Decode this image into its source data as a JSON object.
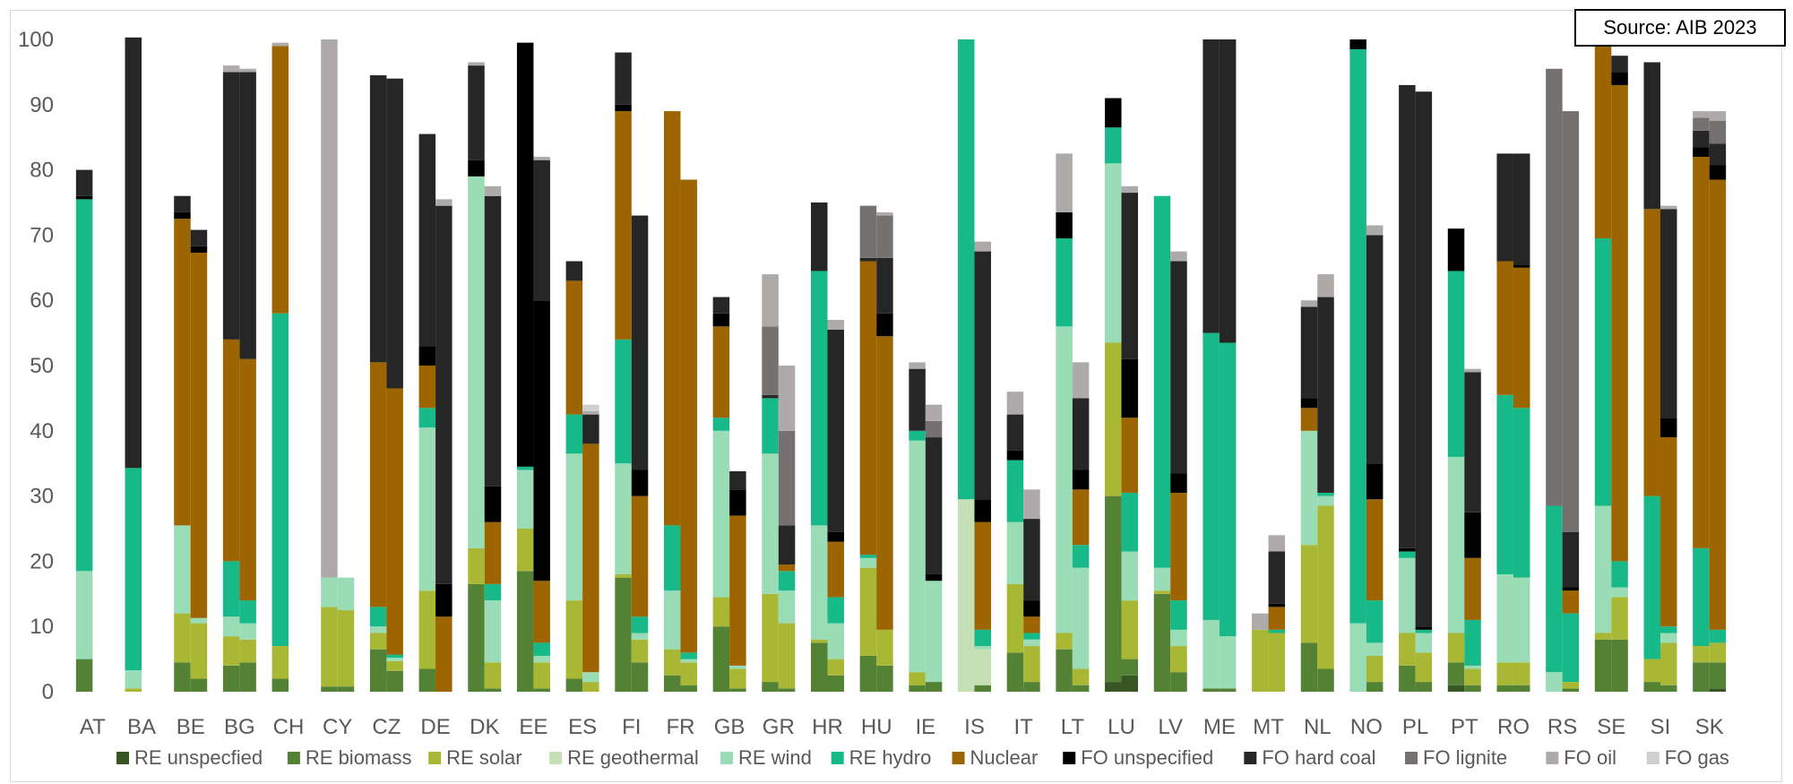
{
  "source_label": "Source: AIB 2023",
  "chart_data": {
    "type": "bar",
    "stacked": true,
    "bars_per_category": 2,
    "ylim": [
      0,
      100
    ],
    "yticks": [
      0,
      10,
      20,
      30,
      40,
      50,
      60,
      70,
      80,
      90,
      100
    ],
    "grid": false,
    "legend_position": "bottom",
    "categories": [
      "AT",
      "BA",
      "BE",
      "BG",
      "CH",
      "CY",
      "CZ",
      "DE",
      "DK",
      "EE",
      "ES",
      "FI",
      "FR",
      "GB",
      "GR",
      "HR",
      "HU",
      "IE",
      "IS",
      "IT",
      "LT",
      "LU",
      "LV",
      "ME",
      "MT",
      "NL",
      "NO",
      "PL",
      "PT",
      "RO",
      "RS",
      "SE",
      "SI",
      "SK"
    ],
    "series": [
      {
        "name": "RE unspecfied",
        "color": "#375623"
      },
      {
        "name": "RE biomass",
        "color": "#548235"
      },
      {
        "name": "RE solar",
        "color": "#a9b834"
      },
      {
        "name": "RE geothermal",
        "color": "#c5e0b4"
      },
      {
        "name": "RE wind",
        "color": "#99dcb5"
      },
      {
        "name": "RE hydro",
        "color": "#16b987"
      },
      {
        "name": "Nuclear",
        "color": "#9c6500"
      },
      {
        "name": "FO unspecified",
        "color": "#000000"
      },
      {
        "name": "FO hard coal",
        "color": "#262626"
      },
      {
        "name": "FO lignite",
        "color": "#767171"
      },
      {
        "name": "FO oil",
        "color": "#aeaaaa"
      },
      {
        "name": "FO gas",
        "color": "#d0cece"
      }
    ],
    "bars": [
      {
        "category": "AT",
        "values": [
          0,
          5,
          0,
          0,
          13.5,
          57,
          0,
          0.5,
          4,
          0,
          0,
          0
        ]
      },
      {
        "category": "AT",
        "values": [
          0,
          0,
          0,
          0,
          0,
          0,
          0,
          0,
          0,
          0,
          0,
          0
        ]
      },
      {
        "category": "BA",
        "values": [
          0,
          0,
          0.5,
          0,
          2.8,
          31,
          0,
          0,
          66,
          0,
          0,
          0
        ]
      },
      {
        "category": "BA",
        "values": [
          0,
          0,
          0,
          0,
          0,
          0,
          0,
          0,
          0,
          0,
          0,
          0
        ]
      },
      {
        "category": "BE",
        "values": [
          0,
          4.5,
          7.5,
          0,
          13.5,
          0,
          47,
          1,
          2.5,
          0,
          0,
          0
        ]
      },
      {
        "category": "BE",
        "values": [
          0,
          2,
          8.5,
          0,
          0.8,
          0,
          56,
          1,
          2.5,
          0,
          0,
          0
        ]
      },
      {
        "category": "BG",
        "values": [
          0,
          4,
          4.5,
          0,
          3,
          8.5,
          34,
          0,
          41,
          0,
          1,
          0
        ]
      },
      {
        "category": "BG",
        "values": [
          0,
          4.5,
          3.5,
          0,
          2.5,
          3.5,
          37,
          0,
          44,
          0,
          0.5,
          0
        ]
      },
      {
        "category": "CH",
        "values": [
          0,
          2,
          5,
          0,
          0,
          51,
          41,
          0,
          0,
          0,
          0.5,
          0
        ]
      },
      {
        "category": "CH",
        "values": [
          0,
          0,
          0,
          0,
          0,
          0,
          0,
          0,
          0,
          0,
          0,
          0
        ]
      },
      {
        "category": "CY",
        "values": [
          0,
          0.8,
          12.2,
          0,
          4.5,
          0,
          0,
          0,
          0,
          0,
          82.5,
          0
        ]
      },
      {
        "category": "CY",
        "values": [
          0,
          0.8,
          11.7,
          0,
          5,
          0,
          0,
          0,
          0,
          0,
          0,
          0
        ]
      },
      {
        "category": "CZ",
        "values": [
          0,
          6.5,
          2.5,
          0,
          1,
          3,
          37.5,
          0,
          44,
          0,
          0,
          0
        ]
      },
      {
        "category": "CZ",
        "values": [
          0,
          3.2,
          1.5,
          0,
          0.5,
          0.5,
          40.8,
          0,
          47.5,
          0,
          0,
          0
        ]
      },
      {
        "category": "DE",
        "values": [
          0,
          3.5,
          12,
          0,
          25,
          3,
          6.5,
          3,
          32.5,
          0,
          0,
          0
        ]
      },
      {
        "category": "DE",
        "values": [
          0,
          0,
          0,
          0,
          0,
          0,
          11.5,
          5,
          58,
          0,
          1,
          0
        ]
      },
      {
        "category": "DK",
        "values": [
          0,
          16.5,
          5.5,
          0,
          57,
          0,
          0,
          2.5,
          14.5,
          0,
          0.5,
          0
        ]
      },
      {
        "category": "DK",
        "values": [
          0,
          0.5,
          4,
          0,
          9.5,
          2.5,
          9.5,
          5.5,
          44.5,
          0,
          1.5,
          0
        ]
      },
      {
        "category": "EE",
        "values": [
          0,
          18.5,
          6.5,
          0,
          9,
          0.5,
          0,
          65,
          0,
          0,
          0,
          0
        ]
      },
      {
        "category": "EE",
        "values": [
          0,
          0.5,
          4,
          0,
          1,
          2,
          9.5,
          43,
          21.5,
          0,
          0.5,
          0
        ]
      },
      {
        "category": "ES",
        "values": [
          0,
          2,
          12,
          0,
          22.5,
          6,
          20.5,
          0,
          3,
          0,
          0,
          0
        ]
      },
      {
        "category": "ES",
        "values": [
          0,
          0,
          1.5,
          0,
          1.5,
          0,
          35,
          0,
          4.5,
          0,
          0.5,
          1
        ]
      },
      {
        "category": "FI",
        "values": [
          0,
          17.5,
          0.5,
          0,
          17,
          19,
          35,
          1,
          8,
          0,
          0,
          0
        ]
      },
      {
        "category": "FI",
        "values": [
          0,
          4.5,
          3.5,
          0,
          1,
          2.5,
          18.5,
          4,
          39,
          0,
          0,
          0
        ]
      },
      {
        "category": "FR",
        "values": [
          0,
          2.5,
          4,
          0,
          9,
          10,
          63.5,
          0,
          0,
          0,
          0,
          0
        ]
      },
      {
        "category": "FR",
        "values": [
          0,
          1,
          3.5,
          0,
          0.5,
          1,
          72.5,
          0,
          0,
          0,
          0,
          0
        ]
      },
      {
        "category": "GB",
        "values": [
          0,
          10,
          4.5,
          0,
          25.5,
          2,
          14,
          2,
          2.5,
          0,
          0,
          0
        ]
      },
      {
        "category": "GB",
        "values": [
          0,
          0.5,
          3,
          0,
          0.5,
          0,
          23,
          4,
          2.8,
          0,
          0,
          0
        ]
      },
      {
        "category": "GR",
        "values": [
          0,
          1.5,
          13.5,
          0,
          21.5,
          8.5,
          0,
          0,
          0.5,
          10.5,
          8,
          0
        ]
      },
      {
        "category": "GR",
        "values": [
          0,
          0.5,
          10,
          0,
          5,
          3,
          1,
          0,
          6,
          14.5,
          10,
          0
        ]
      },
      {
        "category": "HR",
        "values": [
          0,
          7.5,
          0.5,
          0,
          17.5,
          39,
          0,
          0,
          10.5,
          0,
          0,
          0
        ]
      },
      {
        "category": "HR",
        "values": [
          0,
          2.5,
          2.5,
          0,
          5.5,
          4,
          8.5,
          1.5,
          31,
          0,
          1.5,
          0
        ]
      },
      {
        "category": "HU",
        "values": [
          0,
          5.5,
          13.5,
          0,
          1.5,
          0.5,
          45,
          0,
          0.5,
          8,
          0,
          0
        ]
      },
      {
        "category": "HU",
        "values": [
          0,
          4,
          5.5,
          0,
          0,
          0,
          45,
          3.5,
          8.5,
          6.5,
          0.5,
          0
        ]
      },
      {
        "category": "IE",
        "values": [
          0,
          1,
          2,
          0,
          35.5,
          1.5,
          0,
          0,
          9.5,
          0,
          1,
          0
        ]
      },
      {
        "category": "IE",
        "values": [
          0,
          1.5,
          0,
          0,
          15.5,
          0,
          0,
          1,
          21,
          2.5,
          2.5,
          0
        ]
      },
      {
        "category": "IS",
        "values": [
          0,
          0,
          0,
          29.5,
          0,
          70.5,
          0,
          0,
          0,
          0,
          0,
          0
        ]
      },
      {
        "category": "IS",
        "values": [
          0,
          1,
          0,
          5.5,
          0.5,
          2.5,
          16.5,
          3.5,
          38,
          0,
          1.5,
          0
        ]
      },
      {
        "category": "IT",
        "values": [
          0,
          6,
          10.5,
          0,
          9.5,
          9.5,
          0,
          1.5,
          5.5,
          0,
          3.5,
          0
        ]
      },
      {
        "category": "IT",
        "values": [
          0,
          1.5,
          5.5,
          0,
          1,
          1,
          2.5,
          2.5,
          12.5,
          0,
          4.5,
          0
        ]
      },
      {
        "category": "LT",
        "values": [
          0,
          6.5,
          2.5,
          0,
          47,
          13.5,
          0,
          4,
          0,
          0,
          9,
          0
        ]
      },
      {
        "category": "LT",
        "values": [
          0,
          1,
          2.5,
          0,
          15.5,
          3.5,
          8.5,
          3,
          11,
          0,
          5.5,
          0
        ]
      },
      {
        "category": "LU",
        "values": [
          1.5,
          28.5,
          23.5,
          0,
          27.5,
          5.5,
          0,
          4.5,
          0,
          0,
          0,
          0
        ]
      },
      {
        "category": "LU",
        "values": [
          2.5,
          2.5,
          9,
          0,
          7.5,
          9,
          11.5,
          9,
          25.5,
          0,
          1,
          0
        ]
      },
      {
        "category": "LV",
        "values": [
          0,
          15,
          0.5,
          0,
          3.5,
          57,
          0,
          0,
          0,
          0,
          0,
          0
        ]
      },
      {
        "category": "LV",
        "values": [
          0,
          3,
          4,
          0,
          2.5,
          4.5,
          16.5,
          3,
          32.5,
          0,
          1.5,
          0
        ]
      },
      {
        "category": "ME",
        "values": [
          0,
          0.5,
          0,
          0,
          10.5,
          44,
          0,
          0,
          45,
          0,
          0,
          0
        ]
      },
      {
        "category": "ME",
        "values": [
          0,
          0.5,
          0,
          0,
          8,
          45,
          0,
          0,
          46.5,
          0,
          0,
          0
        ]
      },
      {
        "category": "MT",
        "values": [
          0,
          0,
          9.5,
          0,
          0,
          0,
          0,
          0,
          0,
          0,
          2.5,
          0
        ]
      },
      {
        "category": "MT",
        "values": [
          0,
          0,
          9,
          0,
          0,
          0.5,
          3.5,
          0.5,
          8,
          0,
          2.5,
          0
        ]
      },
      {
        "category": "NL",
        "values": [
          0,
          7.5,
          15,
          0,
          17.5,
          0,
          3.5,
          1.5,
          14,
          0,
          1,
          0
        ]
      },
      {
        "category": "NL",
        "values": [
          0,
          3.5,
          25,
          0,
          1.5,
          0.5,
          0,
          0,
          30,
          0,
          3.5,
          0
        ]
      },
      {
        "category": "NO",
        "values": [
          0,
          0,
          0,
          0,
          10.5,
          88,
          0,
          1.5,
          0,
          0,
          0,
          0
        ]
      },
      {
        "category": "NO",
        "values": [
          0,
          1.5,
          4,
          0,
          2,
          6.5,
          15.5,
          5.5,
          35,
          0,
          1.5,
          0
        ]
      },
      {
        "category": "PL",
        "values": [
          0,
          4,
          5,
          0,
          11.5,
          1,
          0,
          0.5,
          71,
          0,
          0,
          0
        ]
      },
      {
        "category": "PL",
        "values": [
          0,
          1.5,
          4.5,
          0,
          3,
          0.5,
          0,
          0.5,
          82,
          0,
          0,
          0
        ]
      },
      {
        "category": "PT",
        "values": [
          1,
          3.5,
          4.5,
          0,
          27,
          28.5,
          0,
          6.5,
          0,
          0,
          0,
          0
        ]
      },
      {
        "category": "PT",
        "values": [
          0,
          1,
          2.5,
          0,
          0.5,
          7,
          9.5,
          7,
          21.5,
          0,
          0.5,
          0
        ]
      },
      {
        "category": "RO",
        "values": [
          0,
          1,
          3.5,
          0,
          13.5,
          27.5,
          20.5,
          0,
          16.5,
          0,
          0,
          0
        ]
      },
      {
        "category": "RO",
        "values": [
          0,
          1,
          3.5,
          0,
          13,
          26,
          21.5,
          0.5,
          17,
          0,
          0,
          0
        ]
      },
      {
        "category": "RS",
        "values": [
          0,
          0,
          0,
          0,
          3,
          25.5,
          0,
          0,
          0,
          67,
          0,
          0
        ]
      },
      {
        "category": "RS",
        "values": [
          0,
          0.5,
          1,
          0,
          0,
          10.5,
          3.5,
          0.5,
          8.5,
          64.5,
          0,
          0
        ]
      },
      {
        "category": "SE",
        "values": [
          0,
          8,
          1,
          0,
          19.5,
          41,
          29.5,
          0,
          0,
          0,
          0,
          0
        ]
      },
      {
        "category": "SE",
        "values": [
          0,
          8,
          6.5,
          0,
          1.5,
          4,
          73,
          2,
          2.5,
          0,
          0,
          0
        ]
      },
      {
        "category": "SI",
        "values": [
          0,
          1.5,
          3.5,
          0,
          0,
          25,
          44,
          0,
          22.5,
          0,
          0,
          0
        ]
      },
      {
        "category": "SI",
        "values": [
          0,
          1,
          6.5,
          0,
          1.5,
          1,
          29,
          3,
          32,
          0,
          0.5,
          0
        ]
      },
      {
        "category": "SK",
        "values": [
          0,
          4.5,
          2.5,
          0,
          0,
          15,
          60,
          1.5,
          2.5,
          2,
          1,
          0
        ]
      },
      {
        "category": "SK",
        "values": [
          0.5,
          4,
          3,
          0,
          0,
          2,
          69,
          2.2,
          3.3,
          3.5,
          1.5,
          0
        ]
      }
    ]
  }
}
